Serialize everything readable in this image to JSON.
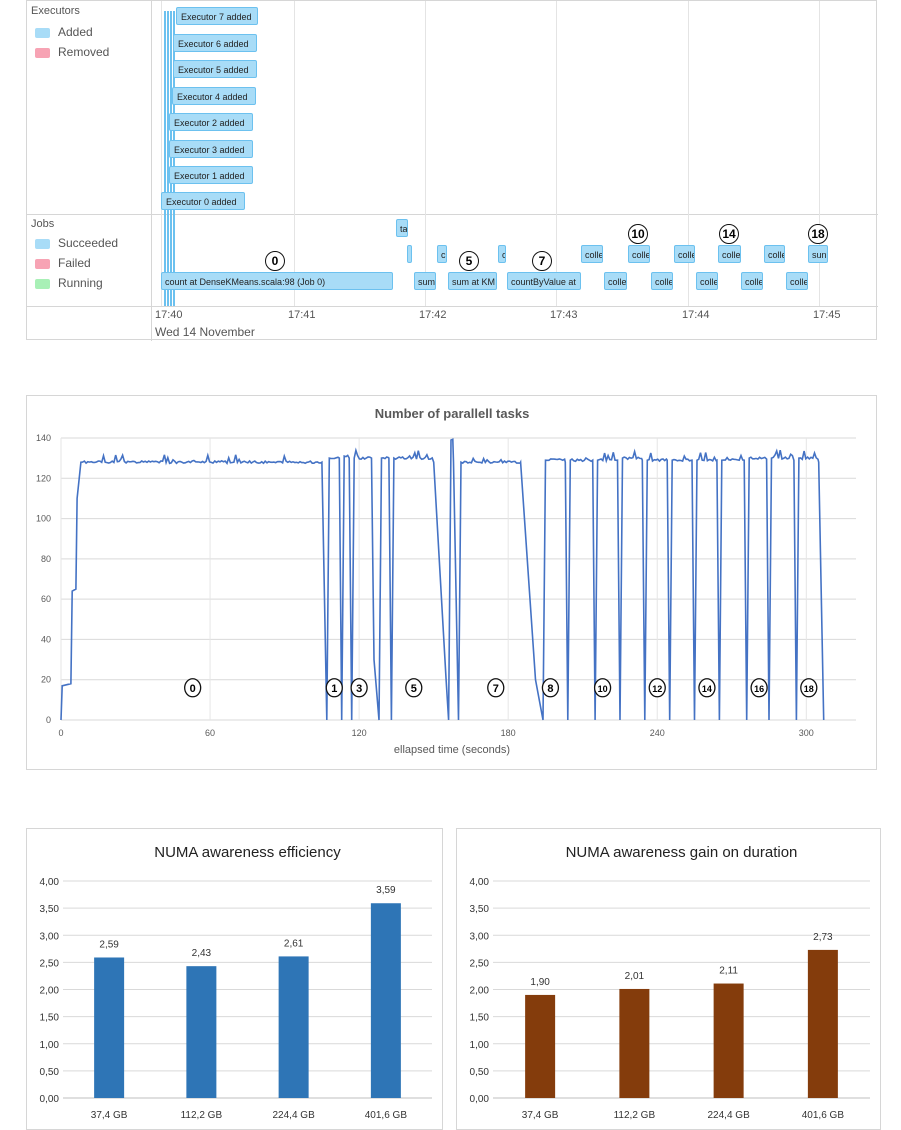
{
  "timeline": {
    "executors_label": "Executors",
    "executor_legend": [
      {
        "label": "Added",
        "color": "#a8dcf7"
      },
      {
        "label": "Removed",
        "color": "#f7a3b4"
      }
    ],
    "jobs_label": "Jobs",
    "job_legend": [
      {
        "label": "Succeeded",
        "color": "#a8dcf7"
      },
      {
        "label": "Failed",
        "color": "#f7a3b4"
      },
      {
        "label": "Running",
        "color": "#a8f0b6"
      }
    ],
    "executor_events": [
      "Executor 7 added",
      "Executor 6 added",
      "Executor 5 added",
      "Executor 4 added",
      "Executor 2 added",
      "Executor 3 added",
      "Executor 1 added",
      "Executor 0 added"
    ],
    "jobs": [
      "ta",
      "",
      "c",
      "c",
      "colle",
      "colle",
      "colle",
      "colle",
      "colle",
      "sun",
      "count at DenseKMeans.scala:98 (Job 0)",
      "sum",
      "sum at KM",
      "countByValue at",
      "colle",
      "colle",
      "colle",
      "colle",
      "colle"
    ],
    "annotations": [
      "0",
      "5",
      "7",
      "10",
      "14",
      "18"
    ],
    "time_ticks": [
      "17:40",
      "17:41",
      "17:42",
      "17:43",
      "17:44",
      "17:45"
    ],
    "date_label": "Wed 14 November"
  },
  "chart_data": [
    {
      "type": "line",
      "title": "Number of parallell tasks",
      "xlabel": "ellapsed time (seconds)",
      "ylabel": "",
      "xlim": [
        0,
        320
      ],
      "ylim": [
        0,
        140
      ],
      "xticks": [
        0,
        60,
        120,
        180,
        240,
        300
      ],
      "yticks": [
        0,
        20,
        40,
        60,
        80,
        100,
        120,
        140
      ],
      "grid": true,
      "color": "#4472c4",
      "points": [
        [
          0,
          0
        ],
        [
          0.5,
          17
        ],
        [
          4,
          18
        ],
        [
          4.5,
          64
        ],
        [
          6,
          65
        ],
        [
          6.5,
          110
        ],
        [
          8,
          128
        ],
        [
          105,
          128
        ],
        [
          107,
          0
        ],
        [
          108,
          130
        ],
        [
          112,
          130
        ],
        [
          113,
          0
        ],
        [
          114,
          131
        ],
        [
          116,
          130
        ],
        [
          117,
          0
        ],
        [
          118,
          130
        ],
        [
          125,
          130
        ],
        [
          126,
          30
        ],
        [
          128,
          0
        ],
        [
          129,
          130
        ],
        [
          132,
          130
        ],
        [
          133,
          0
        ],
        [
          134,
          130
        ],
        [
          150,
          128
        ],
        [
          155,
          20
        ],
        [
          156,
          0
        ],
        [
          157,
          139
        ],
        [
          158,
          128
        ],
        [
          160,
          0
        ],
        [
          161,
          128
        ],
        [
          185,
          128
        ],
        [
          191,
          20
        ],
        [
          194,
          0
        ],
        [
          195,
          129
        ],
        [
          203,
          128
        ],
        [
          204,
          0
        ],
        [
          205,
          129
        ],
        [
          214,
          129
        ],
        [
          215,
          0
        ],
        [
          216,
          129
        ],
        [
          224,
          129
        ],
        [
          225,
          0
        ],
        [
          226,
          130
        ],
        [
          234,
          129
        ],
        [
          235,
          0
        ],
        [
          236,
          129
        ],
        [
          244,
          129
        ],
        [
          245,
          0
        ],
        [
          246,
          129
        ],
        [
          254,
          129
        ],
        [
          255,
          0
        ],
        [
          256,
          129
        ],
        [
          264,
          129
        ],
        [
          265,
          0
        ],
        [
          266,
          129
        ],
        [
          275,
          129
        ],
        [
          276,
          0
        ],
        [
          277,
          130
        ],
        [
          284,
          129
        ],
        [
          285,
          0
        ],
        [
          286,
          130
        ],
        [
          295,
          129
        ],
        [
          296,
          0
        ],
        [
          297,
          130
        ],
        [
          305,
          128
        ],
        [
          307,
          0
        ]
      ],
      "annotations": [
        {
          "label": "0",
          "x": 53
        },
        {
          "label": "1",
          "x": 110
        },
        {
          "label": "3",
          "x": 120
        },
        {
          "label": "5",
          "x": 142
        },
        {
          "label": "7",
          "x": 175
        },
        {
          "label": "8",
          "x": 197
        },
        {
          "label": "10",
          "x": 218
        },
        {
          "label": "12",
          "x": 240
        },
        {
          "label": "14",
          "x": 260
        },
        {
          "label": "16",
          "x": 281
        },
        {
          "label": "18",
          "x": 301
        }
      ]
    },
    {
      "type": "bar",
      "title": "NUMA awareness efficiency",
      "categories": [
        "37,4 GB",
        "112,2 GB",
        "224,4 GB",
        "401,6 GB"
      ],
      "values": [
        2.59,
        2.43,
        2.61,
        3.59
      ],
      "labels": [
        "2,59",
        "2,43",
        "2,61",
        "3,59"
      ],
      "ylim": [
        0,
        4
      ],
      "yticks": [
        "0,00",
        "0,50",
        "1,00",
        "1,50",
        "2,00",
        "2,50",
        "3,00",
        "3,50",
        "4,00"
      ],
      "grid": true,
      "color": "#2e75b6"
    },
    {
      "type": "bar",
      "title": "NUMA awareness gain on duration",
      "categories": [
        "37,4 GB",
        "112,2 GB",
        "224,4 GB",
        "401,6 GB"
      ],
      "values": [
        1.9,
        2.01,
        2.11,
        2.73
      ],
      "labels": [
        "1,90",
        "2,01",
        "2,11",
        "2,73"
      ],
      "ylim": [
        0,
        4
      ],
      "yticks": [
        "0,00",
        "0,50",
        "1,00",
        "1,50",
        "2,00",
        "2,50",
        "3,00",
        "3,50",
        "4,00"
      ],
      "grid": true,
      "color": "#843c0c"
    }
  ]
}
